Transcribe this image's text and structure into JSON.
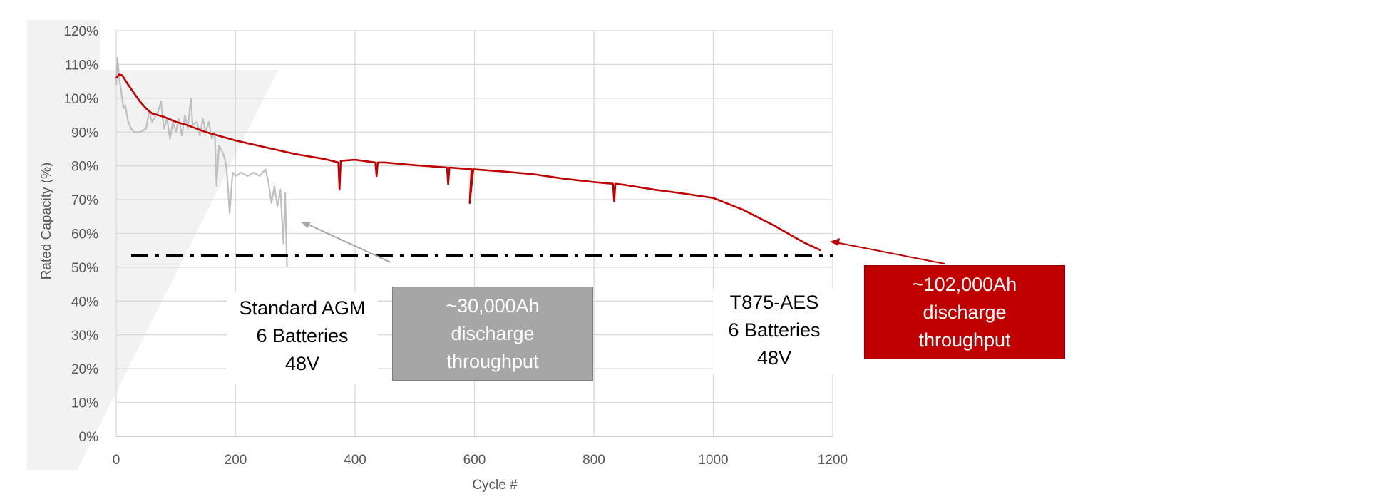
{
  "chart_data": {
    "type": "line",
    "xlabel": "Cycle #",
    "ylabel": "Rated Capacity (%)",
    "xlim": [
      0,
      1200
    ],
    "ylim": [
      0,
      120
    ],
    "x_ticks": [
      "0",
      "200",
      "400",
      "600",
      "800",
      "1000",
      "1200"
    ],
    "y_ticks": [
      "0%",
      "10%",
      "20%",
      "30%",
      "40%",
      "50%",
      "60%",
      "70%",
      "80%",
      "90%",
      "100%",
      "110%",
      "120%"
    ],
    "grid": true,
    "threshold": 53.5,
    "series": [
      {
        "name": "T875-AES",
        "color": "#c00000",
        "points": [
          [
            0,
            106
          ],
          [
            5,
            107
          ],
          [
            10,
            106.8
          ],
          [
            20,
            104
          ],
          [
            30,
            101.5
          ],
          [
            40,
            99
          ],
          [
            50,
            97
          ],
          [
            60,
            95.5
          ],
          [
            80,
            94.5
          ],
          [
            100,
            93
          ],
          [
            120,
            92
          ],
          [
            150,
            90
          ],
          [
            200,
            87.5
          ],
          [
            250,
            85.5
          ],
          [
            300,
            83.5
          ],
          [
            350,
            82
          ],
          [
            372,
            81
          ],
          [
            374,
            73
          ],
          [
            376,
            81.5
          ],
          [
            400,
            81.8
          ],
          [
            434,
            81
          ],
          [
            436,
            77
          ],
          [
            438,
            81
          ],
          [
            450,
            81
          ],
          [
            500,
            80.2
          ],
          [
            554,
            79.5
          ],
          [
            556,
            74.5
          ],
          [
            558,
            79.5
          ],
          [
            595,
            79
          ],
          [
            592,
            69
          ],
          [
            598,
            79
          ],
          [
            650,
            78.3
          ],
          [
            700,
            77.5
          ],
          [
            750,
            76.2
          ],
          [
            800,
            75.2
          ],
          [
            832,
            74.7
          ],
          [
            834,
            69.5
          ],
          [
            836,
            74.7
          ],
          [
            850,
            74.4
          ],
          [
            900,
            73
          ],
          [
            950,
            71.8
          ],
          [
            1000,
            70.5
          ],
          [
            1050,
            67
          ],
          [
            1100,
            62.5
          ],
          [
            1150,
            57.5
          ],
          [
            1180,
            55
          ]
        ]
      },
      {
        "name": "Standard AGM",
        "color": "#bfbfbf",
        "points": [
          [
            0,
            104
          ],
          [
            2,
            112
          ],
          [
            5,
            106
          ],
          [
            10,
            100
          ],
          [
            12,
            97
          ],
          [
            15,
            98
          ],
          [
            20,
            93
          ],
          [
            25,
            91
          ],
          [
            30,
            90
          ],
          [
            40,
            90
          ],
          [
            50,
            91
          ],
          [
            55,
            96
          ],
          [
            60,
            93
          ],
          [
            70,
            96
          ],
          [
            75,
            99
          ],
          [
            80,
            91
          ],
          [
            85,
            94
          ],
          [
            90,
            88
          ],
          [
            95,
            93
          ],
          [
            100,
            90
          ],
          [
            105,
            94
          ],
          [
            110,
            89
          ],
          [
            115,
            95
          ],
          [
            120,
            91
          ],
          [
            125,
            100
          ],
          [
            128,
            92
          ],
          [
            135,
            93
          ],
          [
            140,
            89
          ],
          [
            145,
            94
          ],
          [
            150,
            90
          ],
          [
            155,
            93
          ],
          [
            160,
            88
          ],
          [
            165,
            90
          ],
          [
            168,
            74
          ],
          [
            172,
            86
          ],
          [
            178,
            84
          ],
          [
            182,
            82
          ],
          [
            185,
            79
          ],
          [
            190,
            66
          ],
          [
            195,
            78
          ],
          [
            200,
            77
          ],
          [
            210,
            78
          ],
          [
            220,
            77
          ],
          [
            230,
            78
          ],
          [
            240,
            77
          ],
          [
            250,
            79
          ],
          [
            255,
            75
          ],
          [
            260,
            69
          ],
          [
            265,
            74
          ],
          [
            270,
            68
          ],
          [
            275,
            73
          ],
          [
            280,
            57
          ],
          [
            283,
            72
          ],
          [
            286,
            50
          ]
        ]
      }
    ]
  },
  "annotations": {
    "agm_callout": [
      "Standard AGM",
      "6 Batteries",
      "48V"
    ],
    "agm_throughput": [
      "~30,000Ah",
      "discharge",
      "throughput"
    ],
    "t875_callout": [
      "T875-AES",
      "6 Batteries",
      "48V"
    ],
    "t875_throughput": [
      "~102,000Ah",
      "discharge",
      "throughput"
    ],
    "colors": {
      "red_box": "#c00000",
      "gray_box": "#a6a6a6",
      "dash_line": "#000000"
    }
  }
}
